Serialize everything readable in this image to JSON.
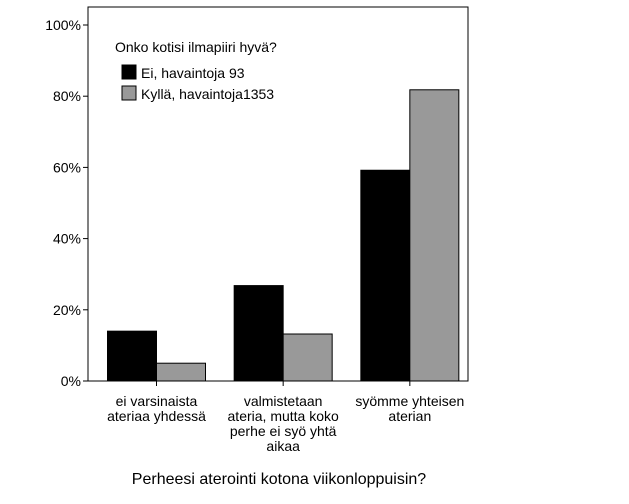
{
  "chart_data": {
    "type": "bar",
    "xlabel": "Perheesi aterointi kotona viikonloppuisin?",
    "ylabel": "",
    "categories": [
      [
        "ei varsinaista",
        "ateriaa yhdessä"
      ],
      [
        "valmistetaan",
        "ateria, mutta koko",
        "perhe ei syö yhtä",
        "aikaa"
      ],
      [
        "syömme yhteisen",
        "aterian"
      ]
    ],
    "ylim": [
      0,
      100
    ],
    "yticks": [
      0,
      20,
      40,
      60,
      80,
      100
    ],
    "ytick_labels": [
      "0%",
      "20%",
      "40%",
      "60%",
      "80%",
      "100%"
    ],
    "legend": {
      "title": "Onko kotisi ilmapiiri hyvä?",
      "placement": "top-left inside plot"
    },
    "series": [
      {
        "name": "Ei, havaintoja 93",
        "color": "#000000",
        "values": [
          14,
          26.8,
          59.2
        ]
      },
      {
        "name": "Kyllä, havaintoja1353",
        "color": "#999999",
        "values": [
          5,
          13.2,
          81.8
        ]
      }
    ],
    "grid": false
  }
}
